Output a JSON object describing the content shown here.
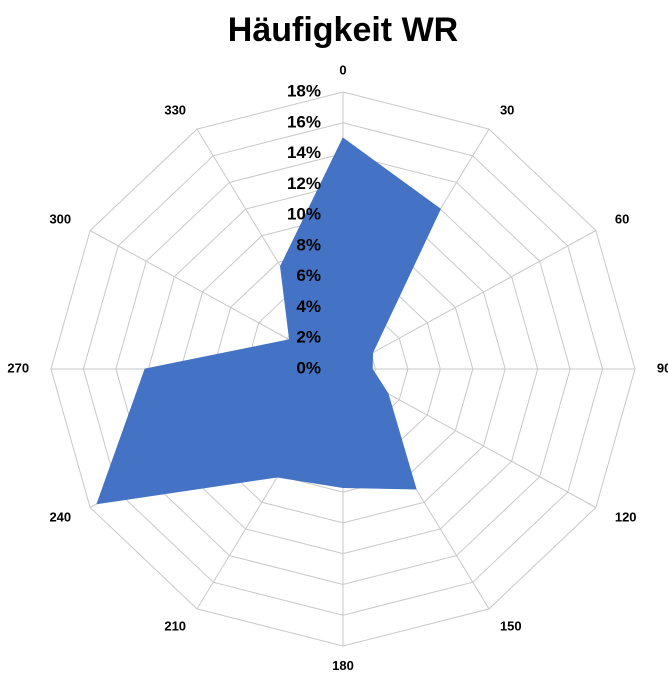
{
  "chart_data": {
    "type": "radar",
    "title": "Häufigkeit WR",
    "categories": [
      "0",
      "30",
      "60",
      "90",
      "120",
      "150",
      "180",
      "210",
      "240",
      "270",
      "300",
      "330"
    ],
    "series": [
      {
        "name": "WR",
        "color": "#4472c4",
        "values": [
          15,
          12,
          2.1,
          1.8,
          3.2,
          9,
          7.7,
          8.1,
          17.5,
          12.2,
          3.8,
          7.7
        ]
      }
    ],
    "ylim": [
      0,
      18
    ],
    "yticks": [
      {
        "value": 0,
        "label": "0%"
      },
      {
        "value": 2,
        "label": "2%"
      },
      {
        "value": 4,
        "label": "4%"
      },
      {
        "value": 6,
        "label": "6%"
      },
      {
        "value": 8,
        "label": "8%"
      },
      {
        "value": 10,
        "label": "10%"
      },
      {
        "value": 12,
        "label": "12%"
      },
      {
        "value": 14,
        "label": "14%"
      },
      {
        "value": 16,
        "label": "16%"
      },
      {
        "value": 18,
        "label": "18%"
      }
    ],
    "grid": true
  }
}
